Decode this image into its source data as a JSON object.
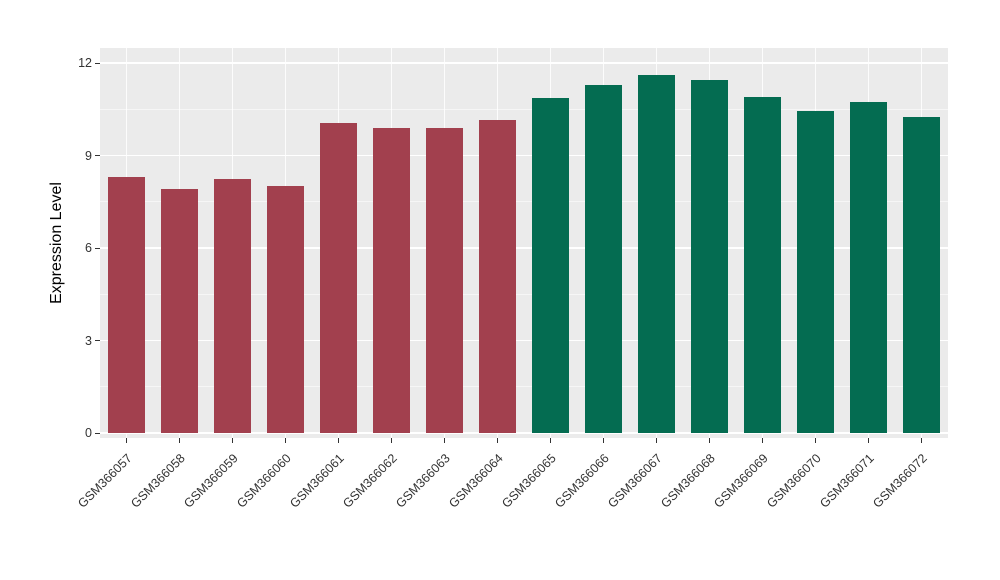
{
  "chart_data": {
    "type": "bar",
    "ylabel": "Expression Level",
    "xlabel": "",
    "ylim": [
      0,
      12
    ],
    "yticks": [
      0,
      3,
      6,
      9,
      12
    ],
    "minor_gridlines": [
      1.5,
      4.5,
      7.5,
      10.5
    ],
    "grid": true,
    "legend": false,
    "categories": [
      "GSM366057",
      "GSM366058",
      "GSM366059",
      "GSM366060",
      "GSM366061",
      "GSM366062",
      "GSM366063",
      "GSM366064",
      "GSM366065",
      "GSM366066",
      "GSM366067",
      "GSM366068",
      "GSM366069",
      "GSM366070",
      "GSM366071",
      "GSM366072"
    ],
    "values": [
      8.3,
      7.9,
      8.25,
      8.0,
      10.05,
      9.9,
      9.9,
      10.15,
      10.85,
      11.3,
      11.6,
      11.45,
      10.9,
      10.45,
      10.75,
      10.25
    ],
    "bar_colors": [
      "#A2404E",
      "#A2404E",
      "#A2404E",
      "#A2404E",
      "#A2404E",
      "#A2404E",
      "#A2404E",
      "#A2404E",
      "#046C51",
      "#046C51",
      "#046C51",
      "#046C51",
      "#046C51",
      "#046C51",
      "#046C51",
      "#046C51"
    ],
    "colors": {
      "maroon_group": "#A2404E",
      "green_group": "#046C51",
      "panel_background": "#EBEBEB",
      "gridline": "#FFFFFF",
      "axis_text": "#333333",
      "axis_title": "#000000"
    }
  }
}
